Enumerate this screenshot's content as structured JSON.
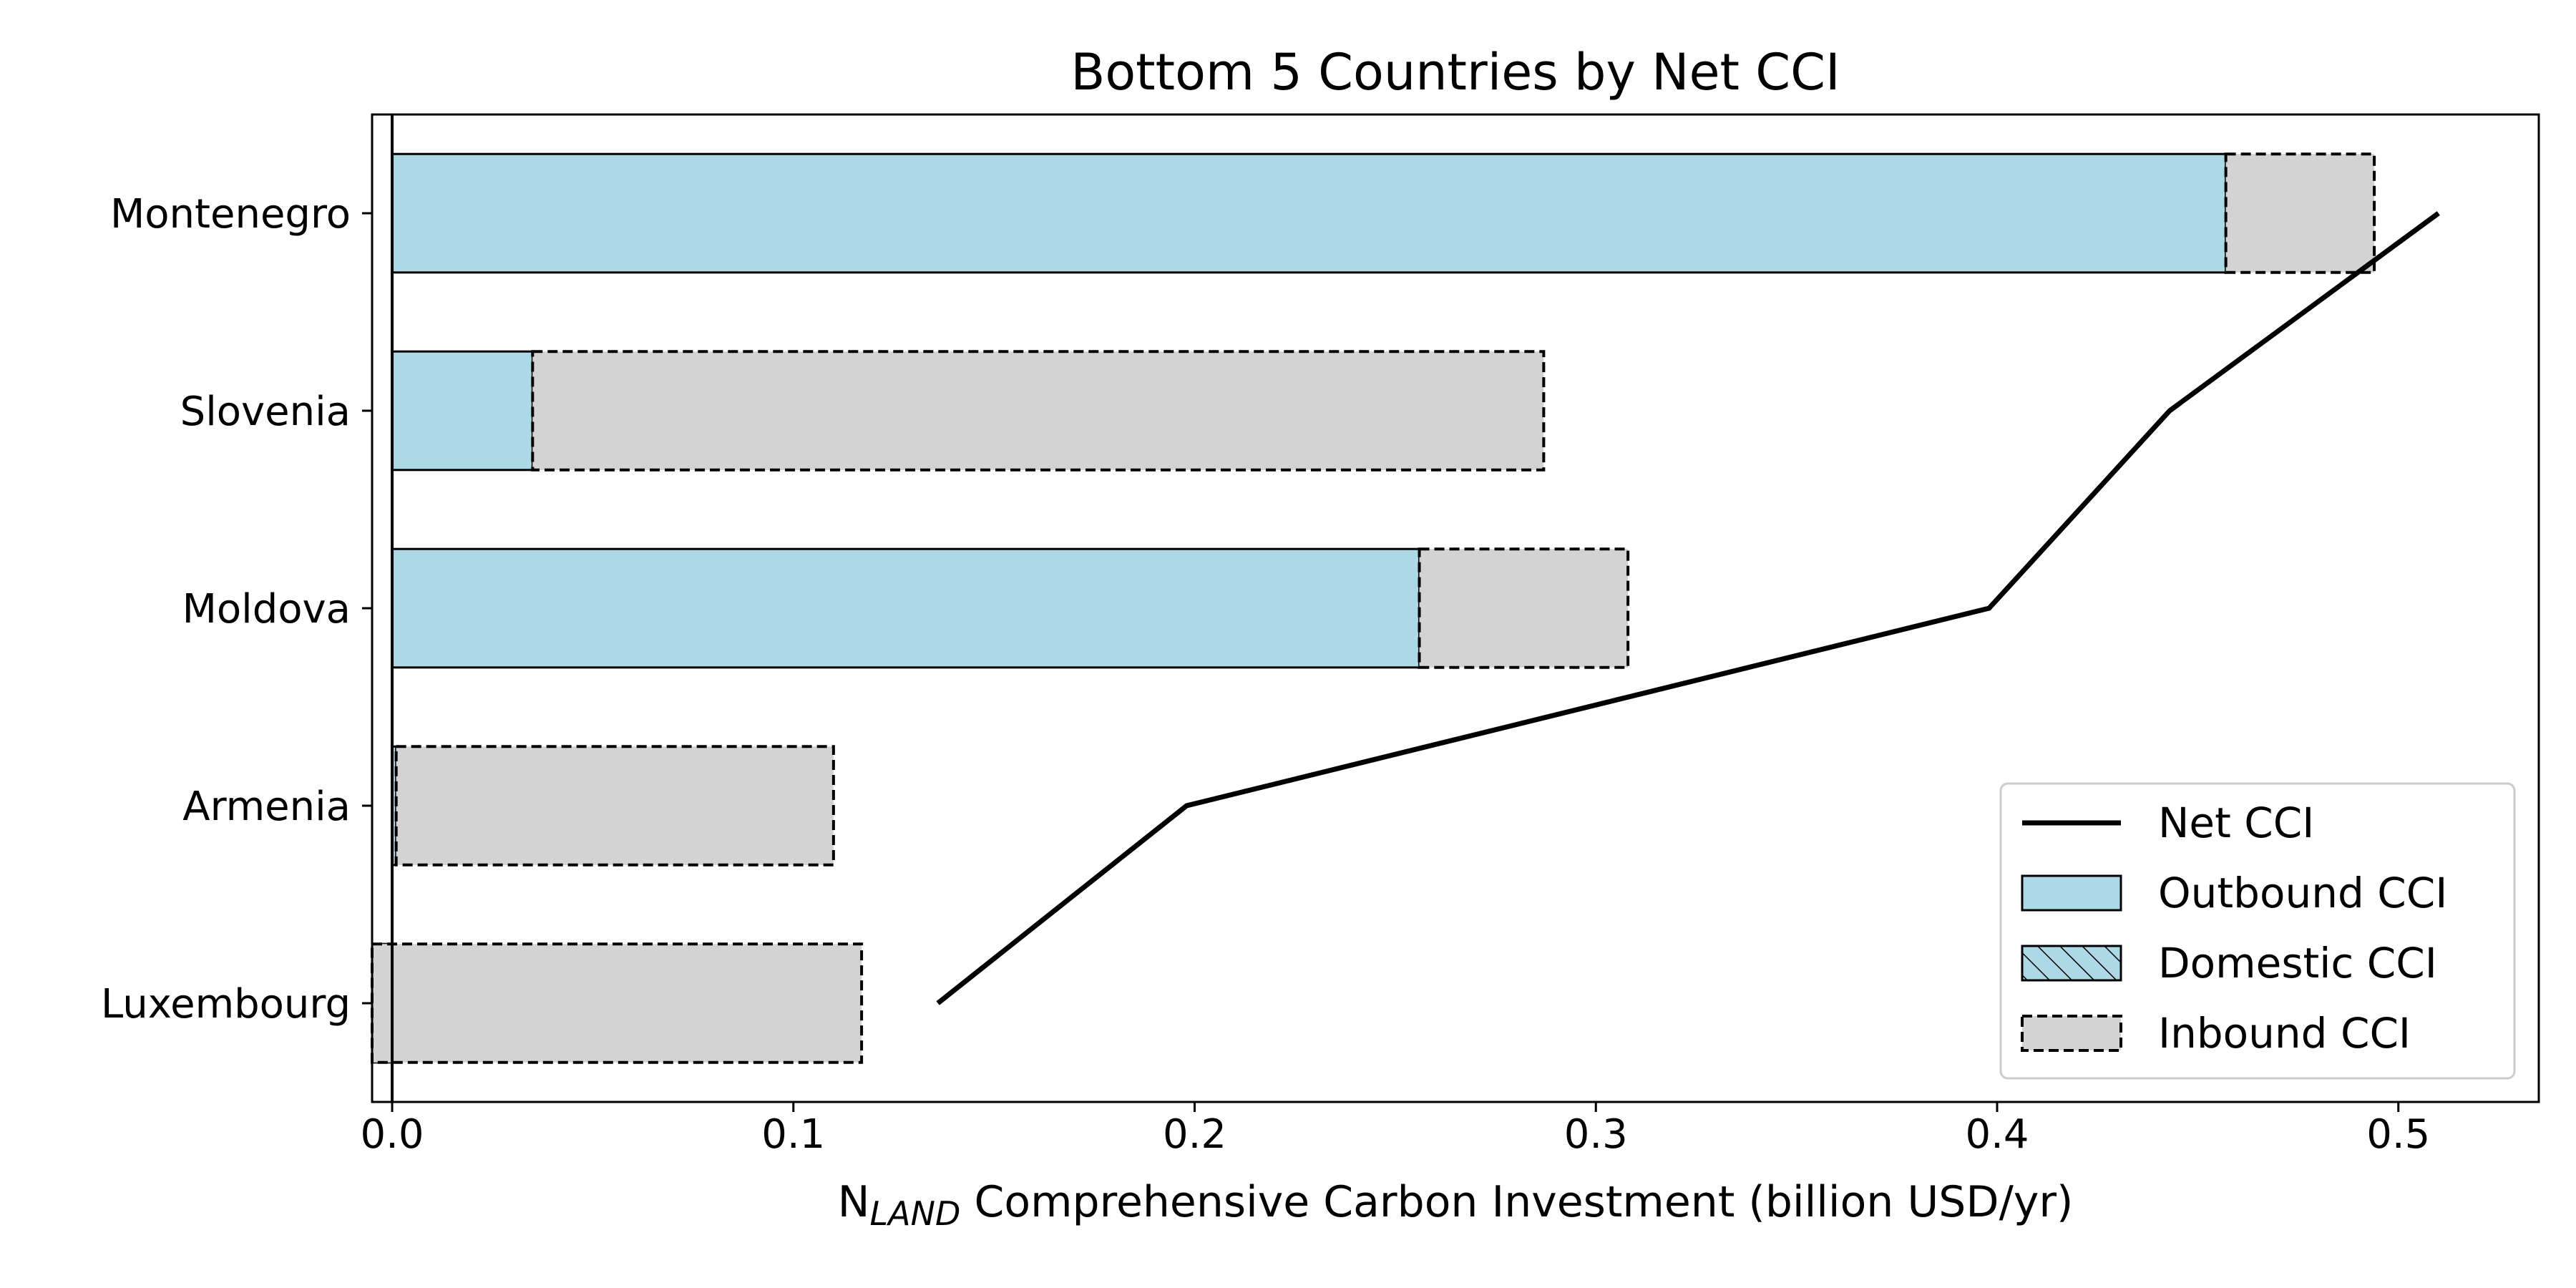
{
  "chart_data": {
    "type": "bar",
    "orientation": "horizontal",
    "stacked": true,
    "title": "Bottom 5 Countries by Net CCI",
    "xlabel_prefix": "N",
    "xlabel_subscript": "LAND",
    "xlabel_rest": " Comprehensive Carbon Investment (billion USD/yr)",
    "xlim": [
      -0.005,
      0.535
    ],
    "x_ticks": [
      0.0,
      0.1,
      0.2,
      0.3,
      0.4,
      0.5
    ],
    "x_tick_labels": [
      "0.0",
      "0.1",
      "0.2",
      "0.3",
      "0.4",
      "0.5"
    ],
    "categories": [
      "Montenegro",
      "Slovenia",
      "Moldova",
      "Armenia",
      "Luxembourg"
    ],
    "series": [
      {
        "name": "Outbound CCI",
        "kind": "bar",
        "values": [
          0.457,
          0.035,
          0.256,
          0.001,
          -0.005
        ],
        "color": "#add8e6",
        "edge": "solid"
      },
      {
        "name": "Domestic CCI",
        "kind": "bar",
        "values": [
          0.0,
          0.0,
          0.0,
          0.0,
          0.0
        ],
        "color": "#add8e6",
        "edge": "solid",
        "hatch": "diagonal"
      },
      {
        "name": "Inbound CCI",
        "kind": "bar",
        "values": [
          0.037,
          0.252,
          0.052,
          0.109,
          0.122
        ],
        "color": "#d3d3d3",
        "edge": "dashed"
      },
      {
        "name": "Net CCI",
        "kind": "line",
        "values": [
          0.51,
          0.443,
          0.398,
          0.198,
          0.136
        ],
        "color": "#000000"
      }
    ],
    "legend": {
      "position": "lower-right",
      "entries": [
        "Net CCI",
        "Outbound CCI",
        "Domestic CCI",
        "Inbound CCI"
      ]
    },
    "grid": false,
    "vertical_reference_line_at": 0.0
  }
}
